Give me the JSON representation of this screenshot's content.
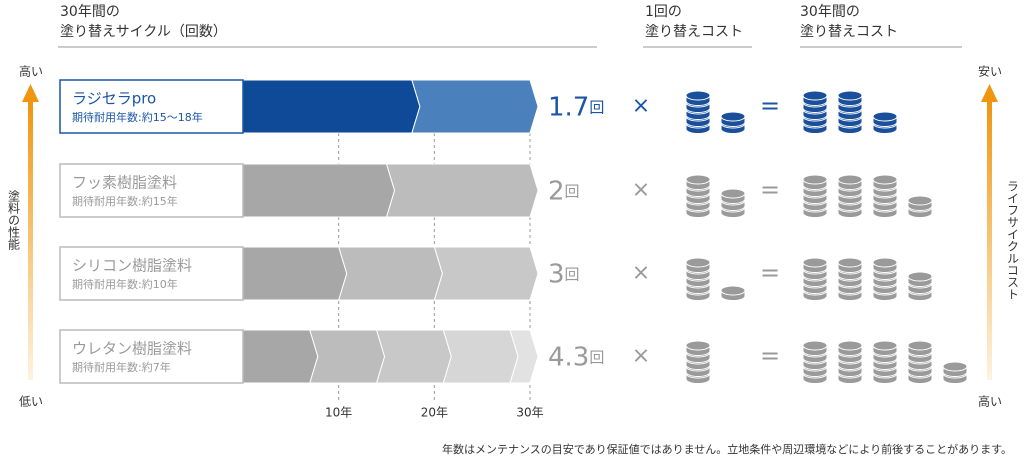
{
  "header": {
    "cycle": [
      "30年間の",
      "塗り替えサイクル（回数）"
    ],
    "unit_cost": [
      "1回の",
      "塗り替えコスト"
    ],
    "total_cost": [
      "30年間の",
      "塗り替えコスト"
    ]
  },
  "left_axis": {
    "top": "高い",
    "label": "塗料の性能",
    "bottom": "低い"
  },
  "right_axis": {
    "top": "安い",
    "label": "ライフサイクルコスト",
    "bottom": "高い"
  },
  "rows": [
    {
      "name": "ラジセラpro",
      "durability": "期待耐用年数:約15〜18年",
      "count": 1.7,
      "unit": "回"
    },
    {
      "name": "フッ素樹脂塗料",
      "durability": "期待耐用年数:約15年",
      "count": 2,
      "unit": "回"
    },
    {
      "name": "シリコン樹脂塗料",
      "durability": "期待耐用年数:約10年",
      "count": 3,
      "unit": "回"
    },
    {
      "name": "ウレタン樹脂塗料",
      "durability": "期待耐用年数:約7年",
      "count": 4.3,
      "unit": "回"
    }
  ],
  "x_ticks": [
    "10年",
    "20年",
    "30年"
  ],
  "multiply": "×",
  "equals": "=",
  "note": "年数はメンテナンスの目安であり保証値ではありません。立地条件や周辺環境などにより前後することがあります。"
}
